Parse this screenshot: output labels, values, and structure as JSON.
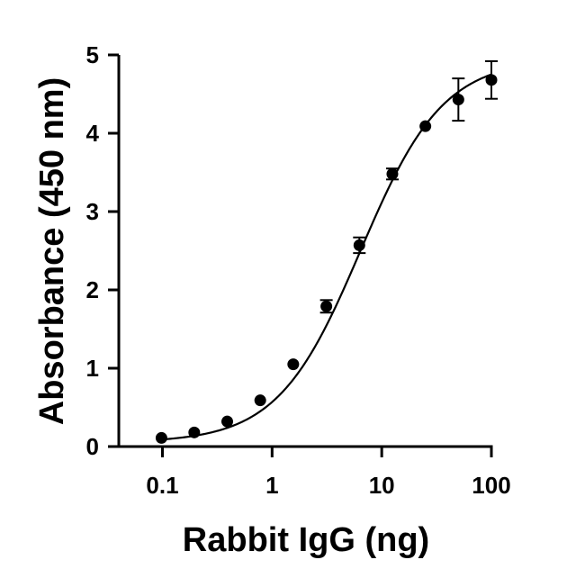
{
  "chart_data": {
    "type": "scatter",
    "title": "",
    "xlabel": "Rabbit IgG (ng)",
    "ylabel": "Absorbance (450 nm)",
    "xscale": "log",
    "xlim": [
      0.04,
      100
    ],
    "ylim": [
      0,
      5
    ],
    "xticks": [
      0.1,
      1,
      10,
      100
    ],
    "xtick_labels": [
      "0.1",
      "1",
      "10",
      "100"
    ],
    "yticks": [
      0,
      1,
      2,
      3,
      4,
      5
    ],
    "ytick_labels": [
      "0",
      "1",
      "2",
      "3",
      "4",
      "5"
    ],
    "grid": false,
    "legend": "none",
    "series": [
      {
        "points": [
          {
            "x": 0.098,
            "y": 0.11,
            "err": 0.0
          },
          {
            "x": 0.195,
            "y": 0.18,
            "err": 0.0
          },
          {
            "x": 0.39,
            "y": 0.32,
            "err": 0.0
          },
          {
            "x": 0.78,
            "y": 0.59,
            "err": 0.0
          },
          {
            "x": 1.56,
            "y": 1.05,
            "err": 0.0
          },
          {
            "x": 3.125,
            "y": 1.79,
            "err": 0.08
          },
          {
            "x": 6.25,
            "y": 2.57,
            "err": 0.1
          },
          {
            "x": 12.5,
            "y": 3.48,
            "err": 0.07
          },
          {
            "x": 25,
            "y": 4.09,
            "err": 0.0
          },
          {
            "x": 50,
            "y": 4.43,
            "err": 0.27
          },
          {
            "x": 100,
            "y": 4.68,
            "err": 0.24
          }
        ],
        "fit": "4-parameter logistic",
        "color": "#000000"
      }
    ]
  }
}
